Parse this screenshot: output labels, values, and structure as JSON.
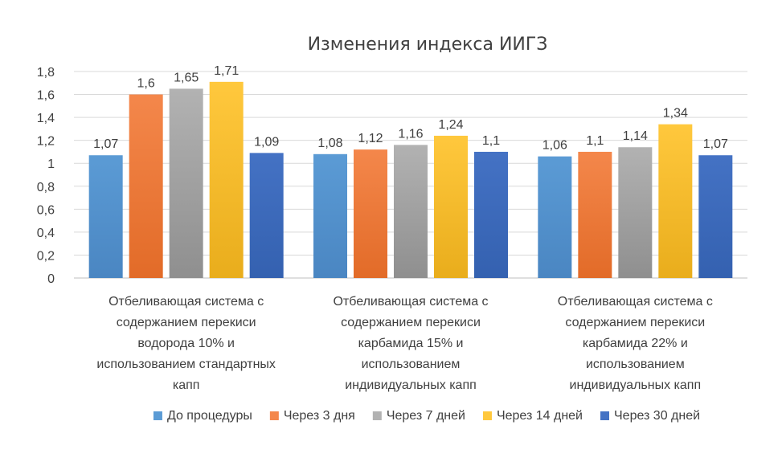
{
  "chart_data": {
    "type": "bar",
    "title": "Изменения индекса ИИГЗ",
    "xlabel": "",
    "ylabel": "",
    "ylim": [
      0,
      1.8
    ],
    "yticks": [
      0,
      0.2,
      0.4,
      0.6,
      0.8,
      1,
      1.2,
      1.4,
      1.6,
      1.8
    ],
    "ytick_labels": [
      "0",
      "0,2",
      "0,4",
      "0,6",
      "0,8",
      "1",
      "1,2",
      "1,4",
      "1,6",
      "1,8"
    ],
    "grid": true,
    "legend_position": "bottom",
    "categories": [
      [
        "Отбеливающая система с",
        "содержанием перекиси",
        "водорода 10% и",
        "использованием стандартных",
        "капп"
      ],
      [
        "Отбеливающая система с",
        "содержанием перекиси",
        "карбамида 15% и",
        "использованием",
        "индивидуальных капп"
      ],
      [
        "Отбеливающая система с",
        "содержанием перекиси",
        "карбамида 22% и",
        "использованием",
        "индивидуальных капп"
      ]
    ],
    "series": [
      {
        "name": "До процедуры",
        "color": "#5b9bd5",
        "colorDark": "#4a86c2",
        "values": [
          1.07,
          1.08,
          1.06
        ],
        "labels": [
          "1,07",
          "1,08",
          "1,06"
        ]
      },
      {
        "name": "Через 3 дня",
        "color": "#f4874b",
        "colorDark": "#e26b28",
        "values": [
          1.6,
          1.12,
          1.1
        ],
        "labels": [
          "1,6",
          "1,12",
          "1,1"
        ]
      },
      {
        "name": "Через 7 дней",
        "color": "#b2b2b2",
        "colorDark": "#8f8f8f",
        "values": [
          1.65,
          1.16,
          1.14
        ],
        "labels": [
          "1,65",
          "1,16",
          "1,14"
        ]
      },
      {
        "name": "Через 14 дней",
        "color": "#ffc83d",
        "colorDark": "#e9ad1c",
        "values": [
          1.71,
          1.24,
          1.34
        ],
        "labels": [
          "1,71",
          "1,24",
          "1,34"
        ]
      },
      {
        "name": "Через 30 дней",
        "color": "#4472c4",
        "colorDark": "#3461b0",
        "values": [
          1.09,
          1.1,
          1.07
        ],
        "labels": [
          "1,09",
          "1,1",
          "1,07"
        ]
      }
    ]
  }
}
